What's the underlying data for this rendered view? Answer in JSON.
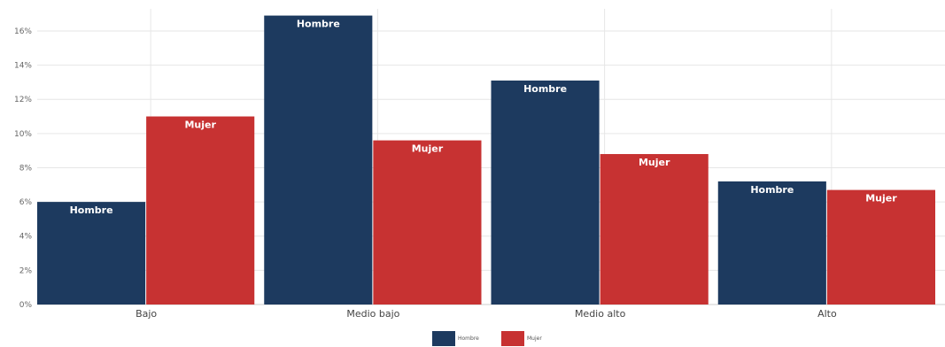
{
  "chart_data": {
    "type": "bar",
    "categories": [
      "Bajo",
      "Medio bajo",
      "Medio alto",
      "Alto"
    ],
    "series": [
      {
        "name": "Hombre",
        "color": "#1d3a5f",
        "values": [
          6.0,
          16.9,
          13.1,
          7.2
        ],
        "labels": [
          "Hombre",
          "Hombre",
          "Hombre",
          "Hombre"
        ]
      },
      {
        "name": "Mujer",
        "color": "#c73232",
        "values": [
          11.0,
          9.6,
          8.8,
          6.7
        ],
        "labels": [
          "Mujer",
          "Mujer",
          "Mujer",
          "Mujer"
        ]
      }
    ],
    "yticks": [
      "0%",
      "2%",
      "4%",
      "6%",
      "8%",
      "10%",
      "12%",
      "14%",
      "16%"
    ],
    "ylim": [
      0,
      17.5
    ],
    "grid": true,
    "legend_position": "bottom",
    "legend": [
      "Hombre",
      "Mujer"
    ],
    "title": "",
    "xlabel": "",
    "ylabel": ""
  }
}
